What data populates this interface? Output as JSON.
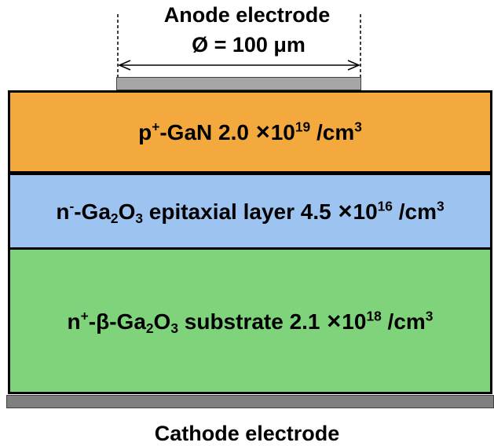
{
  "anode": {
    "title": "Anode electrode",
    "diameter_label": "Ø = 100 μm"
  },
  "layers": [
    {
      "parts": [
        "p",
        "+",
        "-GaN 2.0",
        "×",
        "10",
        "19",
        " /cm",
        "3"
      ],
      "color": "#f4b183"
    },
    {
      "parts": [
        "n",
        "-",
        "-Ga",
        "2",
        "O",
        "3",
        " epitaxial layer 4.5",
        "×",
        "10",
        "16",
        " /cm",
        "3"
      ],
      "color": "#9dc3e6"
    },
    {
      "parts": [
        "n",
        "+",
        "-β-Ga",
        "2",
        "O",
        "3",
        " substrate 2.1",
        "×",
        "10",
        "18",
        " /cm",
        "3"
      ],
      "color": "#7fd37f"
    }
  ],
  "cathode": {
    "title": "Cathode electrode"
  },
  "colors": {
    "pgan": "#f4a93f",
    "nepi": "#9dc3f0",
    "substrate": "#7fd37a",
    "anode_pad": "#a6a6a6",
    "cathode_pad": "#7f7f7f"
  }
}
